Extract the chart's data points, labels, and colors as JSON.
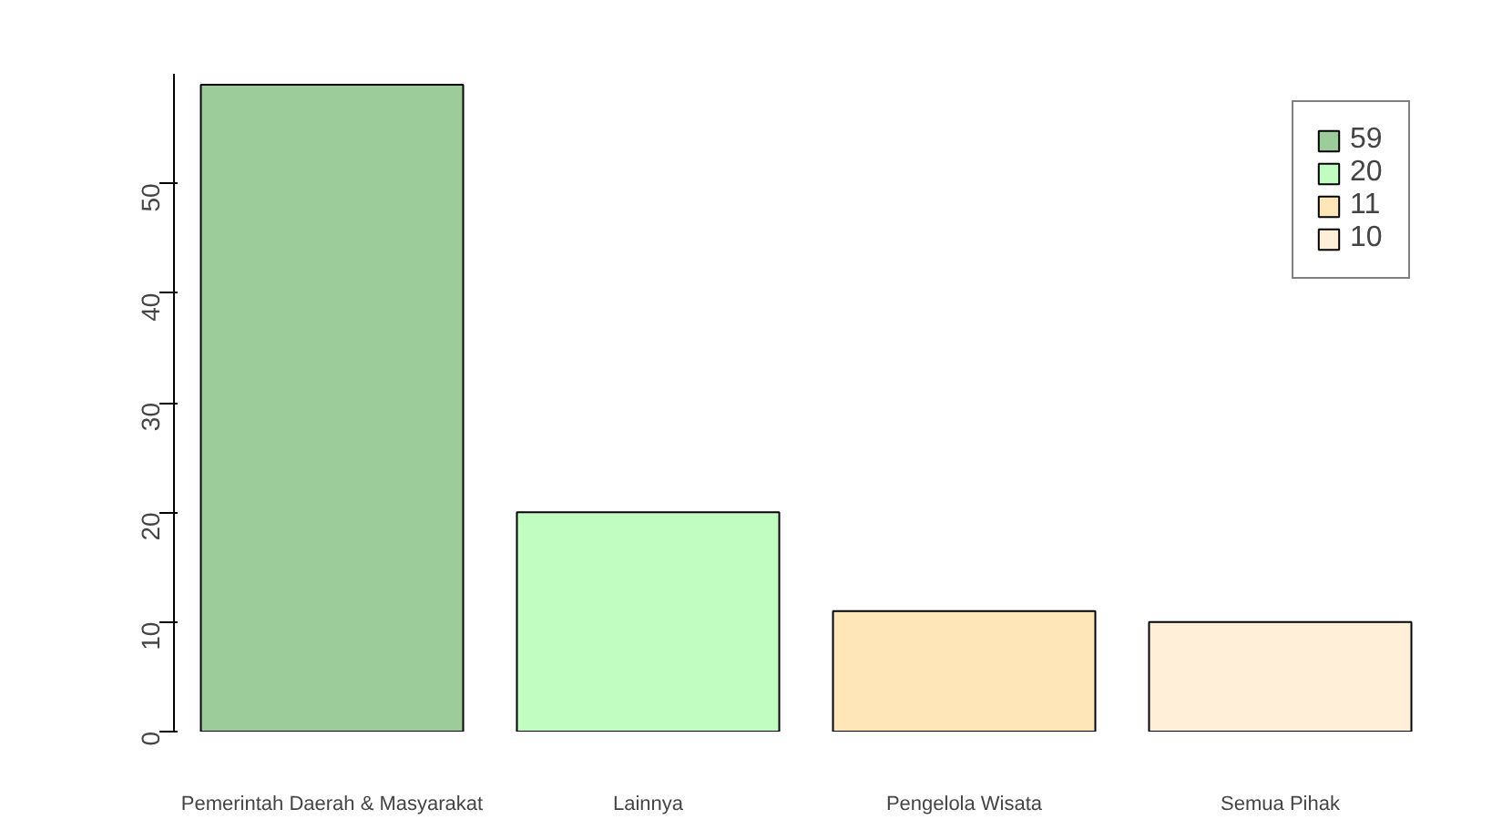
{
  "chart_data": {
    "type": "bar",
    "categories": [
      "Pemerintah Daerah & Masyarakat",
      "Lainnya",
      "Pengelola Wisata",
      "Semua Pihak"
    ],
    "series": [
      {
        "name": "59",
        "color": "#9ccc9a",
        "values": [
          59,
          null,
          null,
          null
        ]
      },
      {
        "name": "20",
        "color": "#c1fdc1",
        "values": [
          null,
          20,
          null,
          null
        ]
      },
      {
        "name": "11",
        "color": "#ffe6b8",
        "values": [
          null,
          null,
          11,
          null
        ]
      },
      {
        "name": "10",
        "color": "#ffefd8",
        "values": [
          null,
          null,
          null,
          10
        ]
      }
    ],
    "ylim": [
      0,
      60
    ],
    "yticks": [
      0,
      10,
      20,
      30,
      40,
      50
    ],
    "grid": false,
    "legend": "top right"
  }
}
